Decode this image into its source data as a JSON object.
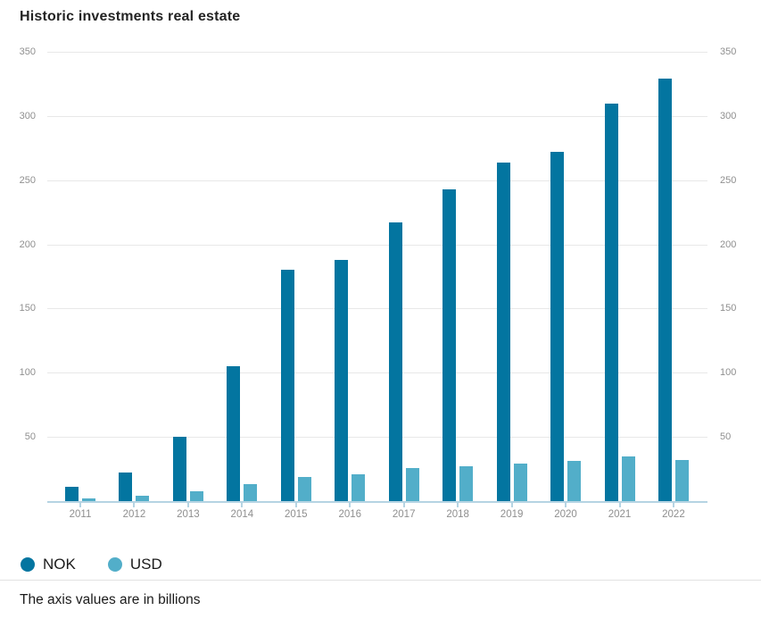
{
  "title": "Historic investments real estate",
  "footnote": "The axis values are in billions",
  "legend": {
    "nok_label": "NOK",
    "usd_label": "USD"
  },
  "colors": {
    "nok": "#0375a0",
    "usd": "#52aec9",
    "axis_line": "#b5d4e3",
    "gridline": "#e8e8e8",
    "tick_text": "#8f8f8f"
  },
  "chart_data": {
    "type": "bar",
    "title": "Historic investments real estate",
    "categories": [
      "2011",
      "2012",
      "2013",
      "2014",
      "2015",
      "2016",
      "2017",
      "2018",
      "2019",
      "2020",
      "2021",
      "2022"
    ],
    "series": [
      {
        "name": "NOK",
        "color": "#0375a0",
        "values": [
          11,
          22,
          50,
          105,
          180,
          188,
          217,
          243,
          264,
          272,
          310,
          329
        ]
      },
      {
        "name": "USD",
        "color": "#52aec9",
        "values": [
          2,
          4,
          8,
          13,
          19,
          21,
          26,
          27,
          29,
          31,
          35,
          32
        ]
      }
    ],
    "xlabel": "",
    "ylabel": "billions",
    "ylim": [
      0,
      350
    ],
    "yticks": [
      50,
      100,
      150,
      200,
      250,
      300,
      350
    ],
    "grid": true,
    "dual_y_axis": true,
    "legend_position": "bottom",
    "annotation": "The axis values are in billions"
  }
}
